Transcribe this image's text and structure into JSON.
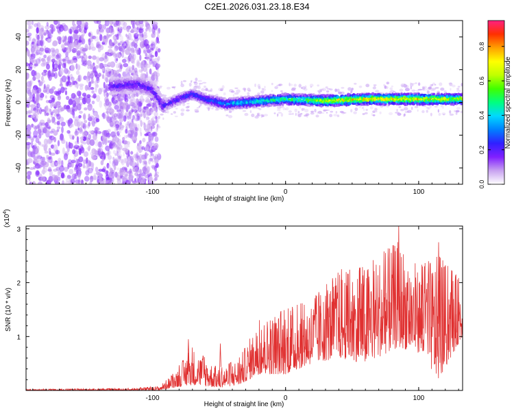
{
  "title": "C2E1.2026.031.23.18.E34",
  "chart_data": [
    {
      "type": "heatmap",
      "title": "C2E1.2026.031.23.18.E34",
      "xlabel": "Height of straight line (km)",
      "ylabel": "Frequency (Hz)",
      "xlim": [
        -195,
        133
      ],
      "ylim": [
        -50,
        50
      ],
      "x_ticks": [
        -100,
        0,
        100
      ],
      "x_tick_labels": [
        "-100",
        "0",
        "100"
      ],
      "y_ticks": [
        -40,
        -20,
        0,
        20,
        40
      ],
      "y_tick_labels": [
        "-40",
        "-20",
        "0",
        "20",
        "40"
      ],
      "colorbar": {
        "label": "Normalized spectral amplitude",
        "range": [
          0,
          0.95
        ],
        "ticks": [
          0.0,
          0.2,
          0.4,
          0.6,
          0.8
        ],
        "tick_labels": [
          "0.0",
          "0.2",
          "0.4",
          "0.6",
          "0.8"
        ],
        "colors": [
          "#ffffff",
          "#c8a2f0",
          "#8020ff",
          "#3020ff",
          "#0080ff",
          "#00d8ff",
          "#00ff80",
          "#40ff00",
          "#c0ff00",
          "#ffff00",
          "#ffa000",
          "#ff3000",
          "#ff2080"
        ]
      },
      "ridge_frequency": [
        {
          "x": -130,
          "f": 10
        },
        {
          "x": -110,
          "f": 11
        },
        {
          "x": -100,
          "f": 8
        },
        {
          "x": -92,
          "f": -2
        },
        {
          "x": -80,
          "f": 2
        },
        {
          "x": -70,
          "f": 5
        },
        {
          "x": -60,
          "f": 2
        },
        {
          "x": -45,
          "f": -1
        },
        {
          "x": -30,
          "f": 0
        },
        {
          "x": -15,
          "f": 1
        },
        {
          "x": 0,
          "f": 2
        },
        {
          "x": 30,
          "f": 1
        },
        {
          "x": 60,
          "f": 2
        },
        {
          "x": 100,
          "f": 2
        },
        {
          "x": 133,
          "f": 2
        }
      ],
      "ridge_amplitude": [
        {
          "x": -130,
          "a": 0.25
        },
        {
          "x": -95,
          "a": 0.25
        },
        {
          "x": -60,
          "a": 0.35
        },
        {
          "x": -20,
          "a": 0.55
        },
        {
          "x": 10,
          "a": 0.65
        },
        {
          "x": 40,
          "a": 0.9
        },
        {
          "x": 100,
          "a": 0.9
        },
        {
          "x": 133,
          "a": 0.8
        }
      ]
    },
    {
      "type": "line",
      "xlabel": "Height of straight line (km)",
      "ylabel": "SNR (10 * v/v)",
      "y_scale_label": "(x10",
      "y_scale_exponent": "4",
      "y_scale_suffix": ")",
      "xlim": [
        -195,
        133
      ],
      "ylim": [
        0,
        3.05
      ],
      "x_ticks": [
        -100,
        0,
        100
      ],
      "x_tick_labels": [
        "-100",
        "0",
        "100"
      ],
      "y_ticks": [
        1,
        2,
        3
      ],
      "y_tick_labels": [
        "1",
        "2",
        "3"
      ],
      "color": "#e03030",
      "envelope": [
        {
          "x": -195,
          "low": 0.0,
          "high": 0.02
        },
        {
          "x": -120,
          "low": 0.0,
          "high": 0.04
        },
        {
          "x": -95,
          "low": 0.0,
          "high": 0.08
        },
        {
          "x": -85,
          "low": 0.05,
          "high": 0.3
        },
        {
          "x": -70,
          "low": 0.1,
          "high": 0.8
        },
        {
          "x": -50,
          "low": 0.05,
          "high": 0.4
        },
        {
          "x": -35,
          "low": 0.1,
          "high": 0.6
        },
        {
          "x": -20,
          "low": 0.3,
          "high": 1.3
        },
        {
          "x": 0,
          "low": 0.3,
          "high": 1.5
        },
        {
          "x": 20,
          "low": 0.5,
          "high": 1.7
        },
        {
          "x": 40,
          "low": 0.6,
          "high": 2.2
        },
        {
          "x": 60,
          "low": 0.5,
          "high": 2.3
        },
        {
          "x": 85,
          "low": 0.8,
          "high": 2.8
        },
        {
          "x": 100,
          "low": 0.7,
          "high": 2.3
        },
        {
          "x": 115,
          "low": 0.2,
          "high": 2.5
        },
        {
          "x": 133,
          "low": 1.0,
          "high": 2.0
        }
      ]
    }
  ]
}
